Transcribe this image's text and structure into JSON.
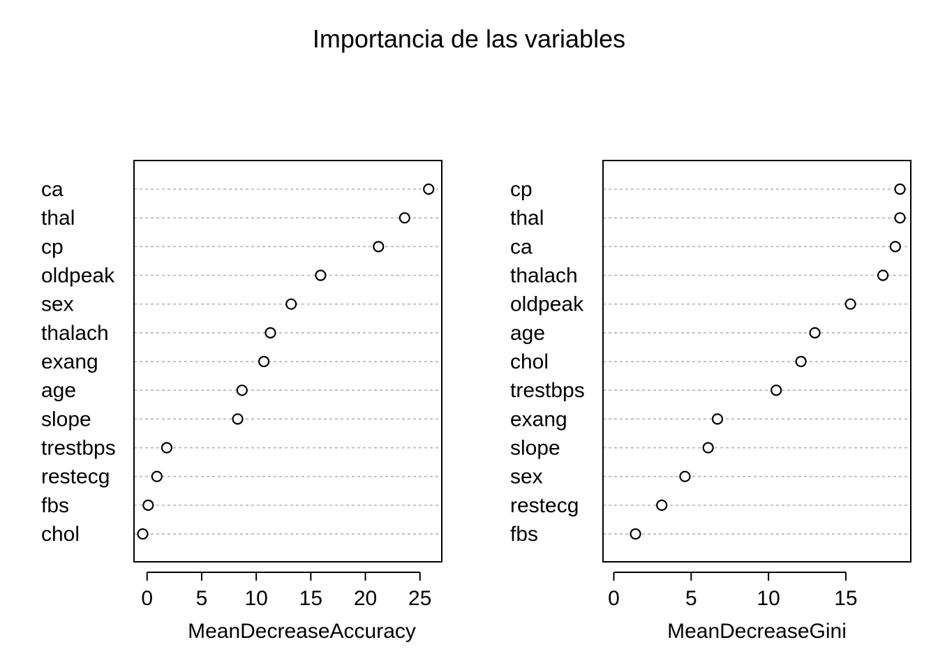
{
  "title": "Importancia de las variables",
  "chart_data": [
    {
      "type": "scatter",
      "subtype": "dotchart",
      "xlabel": "MeanDecreaseAccuracy",
      "ylabel": "",
      "xlim": [
        -1.2,
        27
      ],
      "xticks": [
        0,
        5,
        10,
        15,
        20,
        25
      ],
      "grid": true,
      "categories": [
        "ca",
        "thal",
        "cp",
        "oldpeak",
        "sex",
        "thalach",
        "exang",
        "age",
        "slope",
        "trestbps",
        "restecg",
        "fbs",
        "chol"
      ],
      "values": [
        25.8,
        23.6,
        21.2,
        15.9,
        13.2,
        11.3,
        10.7,
        8.7,
        8.3,
        1.8,
        0.9,
        0.1,
        -0.4
      ]
    },
    {
      "type": "scatter",
      "subtype": "dotchart",
      "xlabel": "MeanDecreaseGini",
      "ylabel": "",
      "xlim": [
        -0.7,
        19.2
      ],
      "xticks": [
        0,
        5,
        10,
        15
      ],
      "grid": true,
      "categories": [
        "cp",
        "thal",
        "ca",
        "thalach",
        "oldpeak",
        "age",
        "chol",
        "trestbps",
        "exang",
        "slope",
        "sex",
        "restecg",
        "fbs"
      ],
      "values": [
        18.5,
        18.5,
        18.2,
        17.4,
        15.3,
        13.0,
        12.1,
        10.5,
        6.7,
        6.1,
        4.6,
        3.1,
        1.4
      ]
    }
  ]
}
